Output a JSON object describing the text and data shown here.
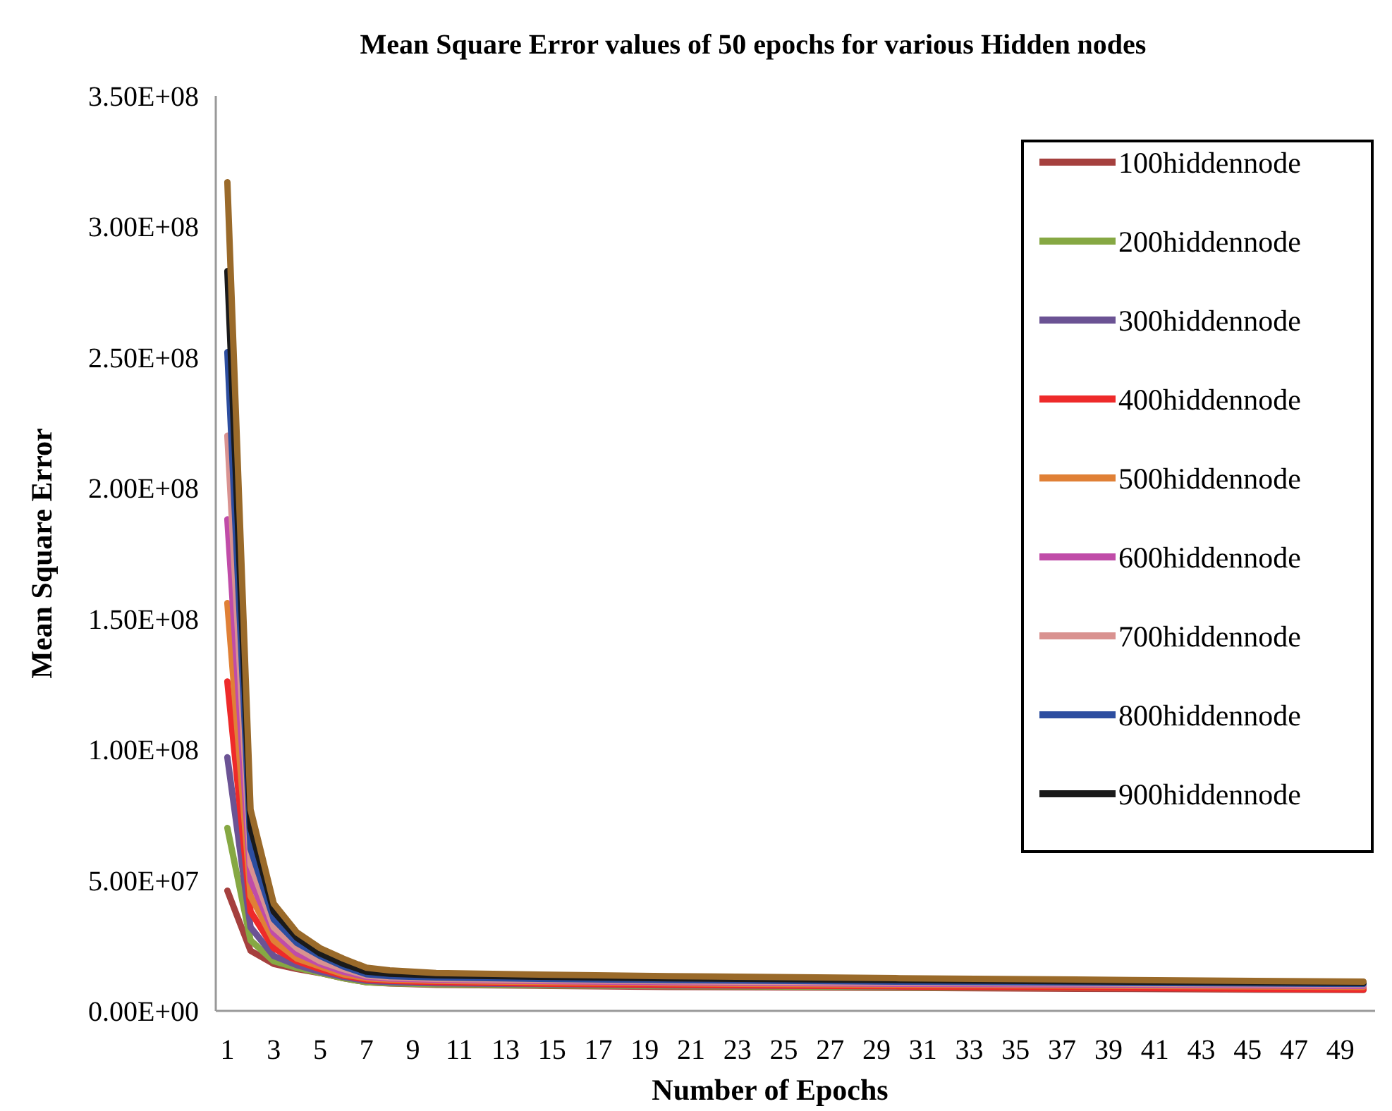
{
  "chart_data": {
    "type": "line",
    "title": "Mean Square Error values of 50 epochs for various Hidden nodes",
    "xlabel": "Number of  Epochs",
    "ylabel": "Mean Square Error",
    "xlim": [
      0.5,
      50.5
    ],
    "xticks": [
      1,
      3,
      5,
      7,
      9,
      11,
      13,
      15,
      17,
      19,
      21,
      23,
      25,
      27,
      29,
      31,
      33,
      35,
      37,
      39,
      41,
      43,
      45,
      47,
      49
    ],
    "ylim": [
      0,
      350000000
    ],
    "yticks": [
      {
        "value": 0,
        "label": "0.00E+00"
      },
      {
        "value": 50000000,
        "label": "5.00E+07"
      },
      {
        "value": 100000000,
        "label": "1.00E+08"
      },
      {
        "value": 150000000,
        "label": "1.50E+08"
      },
      {
        "value": 200000000,
        "label": "2.00E+08"
      },
      {
        "value": 250000000,
        "label": "2.50E+08"
      },
      {
        "value": 300000000,
        "label": "3.00E+08"
      },
      {
        "value": 350000000,
        "label": "3.50E+08"
      }
    ],
    "grid": false,
    "legend": "top right",
    "marker": "none",
    "line_style": "solid",
    "x": [
      1,
      2,
      3,
      4,
      5,
      6,
      7,
      8,
      10,
      15,
      20,
      30,
      40,
      50
    ],
    "series": [
      {
        "name": "100hiddennode",
        "color": "#a5403e",
        "values": [
          46000000,
          23000000,
          18000000,
          16000000,
          14500000,
          12500000,
          11000000,
          10500000,
          10000000,
          9600000,
          9200000,
          8800000,
          8400000,
          8000000
        ]
      },
      {
        "name": "200hiddennode",
        "color": "#86a843",
        "values": [
          70000000,
          27000000,
          19000000,
          16500000,
          14500000,
          12500000,
          11000000,
          10600000,
          10200000,
          9800000,
          9500000,
          9100000,
          8800000,
          8500000
        ]
      },
      {
        "name": "300hiddennode",
        "color": "#6b5394",
        "values": [
          97000000,
          32000000,
          21000000,
          17500000,
          15000000,
          13000000,
          11500000,
          11000000,
          10600000,
          10200000,
          9800000,
          9400000,
          9000000,
          8700000
        ]
      },
      {
        "name": "400hiddennode",
        "color": "#ee2a2a",
        "values": [
          126000000,
          38000000,
          24000000,
          19000000,
          16000000,
          13500000,
          12000000,
          11500000,
          11000000,
          10400000,
          10000000,
          9400000,
          8800000,
          8200000
        ]
      },
      {
        "name": "500hiddennode",
        "color": "#e08036",
        "values": [
          156000000,
          44000000,
          27000000,
          20000000,
          17000000,
          14000000,
          12500000,
          12000000,
          11500000,
          11000000,
          10600000,
          10000000,
          9600000,
          9200000
        ]
      },
      {
        "name": "600hiddennode",
        "color": "#c04ca8",
        "values": [
          188000000,
          50000000,
          30000000,
          22000000,
          18000000,
          15000000,
          13000000,
          12400000,
          11900000,
          11400000,
          11000000,
          10400000,
          10000000,
          9600000
        ]
      },
      {
        "name": "700hiddennode",
        "color": "#d99290",
        "values": [
          220000000,
          56000000,
          32000000,
          24000000,
          19000000,
          16000000,
          13500000,
          12800000,
          12300000,
          11800000,
          11400000,
          10800000,
          10400000,
          10000000
        ]
      },
      {
        "name": "800hiddennode",
        "color": "#2d4ea0",
        "values": [
          252000000,
          62000000,
          35000000,
          26000000,
          21000000,
          17000000,
          14000000,
          13300000,
          12800000,
          12200000,
          11800000,
          11200000,
          10700000,
          10300000
        ]
      },
      {
        "name": "900hiddennode",
        "color": "#1a1a1a",
        "values": [
          283000000,
          70000000,
          38000000,
          28000000,
          22000000,
          18000000,
          15000000,
          14200000,
          13600000,
          13000000,
          12500000,
          11800000,
          11200000,
          10700000
        ]
      },
      {
        "color": "#9a6a2a",
        "values": [
          317000000,
          77000000,
          41000000,
          30000000,
          24000000,
          20000000,
          16500000,
          15500000,
          14500000,
          13800000,
          13300000,
          12500000,
          11800000,
          11200000
        ]
      }
    ]
  }
}
